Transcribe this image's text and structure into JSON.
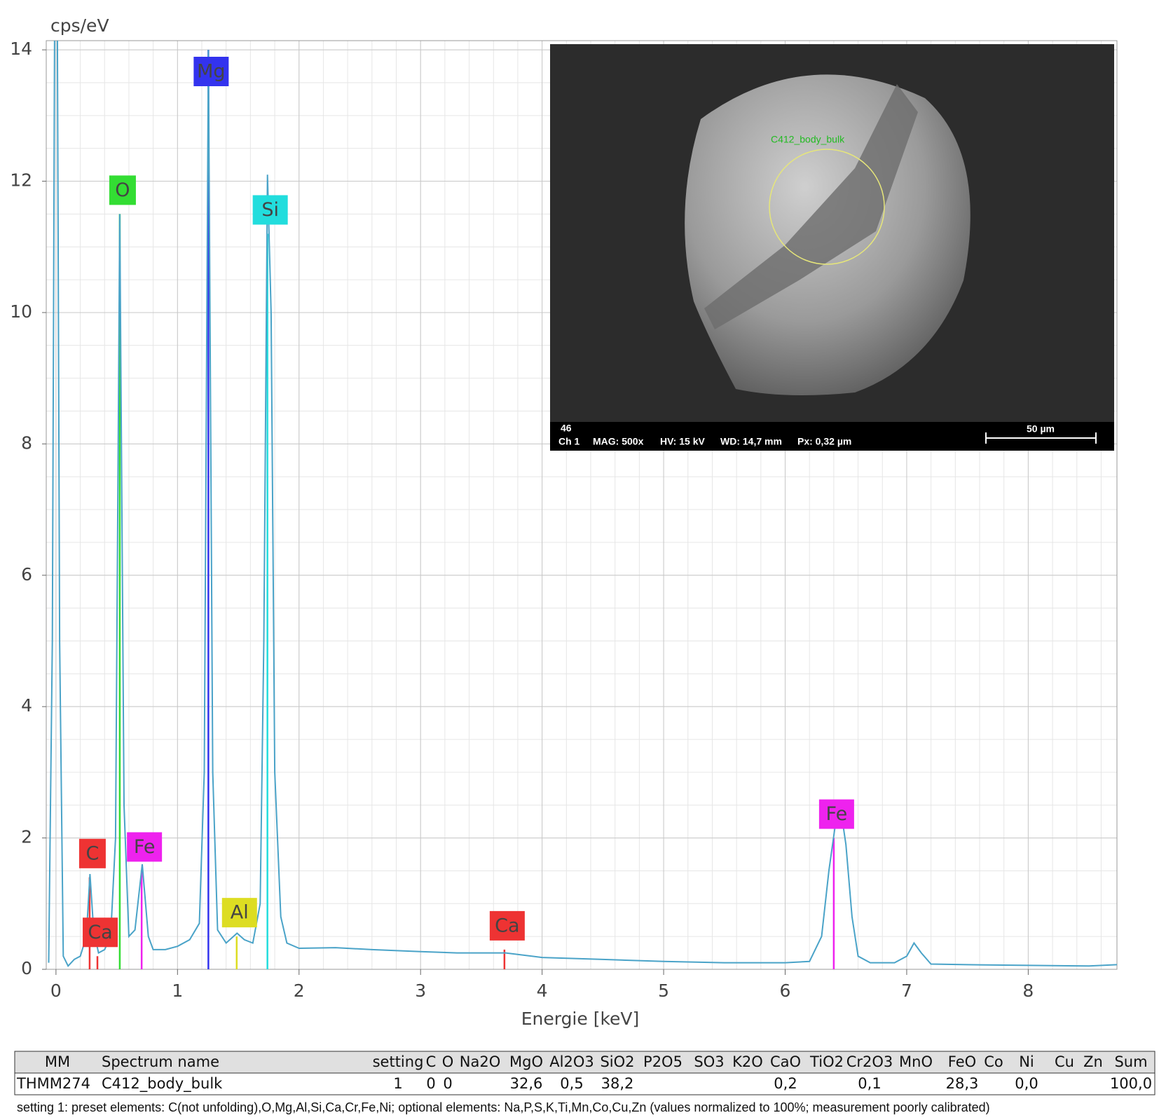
{
  "chart_data": {
    "type": "line",
    "y_axis_label": "cps/eV",
    "x_axis_label": "Energie [keV]",
    "color": "#4aa3c8",
    "xlim": [
      -0.08,
      8.73
    ],
    "ylim": [
      0,
      14.14
    ],
    "xticks": [
      0,
      1,
      2,
      3,
      4,
      5,
      6,
      7,
      8
    ],
    "yticks": [
      0,
      2,
      4,
      6,
      8,
      10,
      12,
      14
    ],
    "grid": true,
    "minor_grid": {
      "x": 0.2,
      "y": 0.5
    },
    "x": [
      -0.06,
      -0.03,
      0,
      0.03,
      0.06,
      0.1,
      0.15,
      0.2,
      0.25,
      0.28,
      0.31,
      0.35,
      0.4,
      0.45,
      0.49,
      0.525,
      0.56,
      0.6,
      0.65,
      0.71,
      0.76,
      0.8,
      0.9,
      1.0,
      1.1,
      1.18,
      1.22,
      1.254,
      1.29,
      1.33,
      1.4,
      1.49,
      1.55,
      1.62,
      1.68,
      1.71,
      1.74,
      1.77,
      1.8,
      1.85,
      1.9,
      2.0,
      2.3,
      2.6,
      3.0,
      3.3,
      3.7,
      4.0,
      4.5,
      5.0,
      5.5,
      6.0,
      6.2,
      6.3,
      6.36,
      6.42,
      6.46,
      6.5,
      6.55,
      6.6,
      6.7,
      6.9,
      7.0,
      7.06,
      7.12,
      7.2,
      7.5,
      8.0,
      8.5,
      8.73
    ],
    "values": [
      0.1,
      5,
      20,
      5,
      0.2,
      0.05,
      0.15,
      0.2,
      0.5,
      1.45,
      0.6,
      0.25,
      0.3,
      0.5,
      2,
      11.5,
      2.5,
      0.5,
      0.6,
      1.6,
      0.5,
      0.3,
      0.3,
      0.35,
      0.45,
      0.7,
      3,
      14.0,
      3,
      0.6,
      0.4,
      0.55,
      0.45,
      0.4,
      1,
      5,
      12.1,
      10,
      3,
      0.8,
      0.4,
      0.32,
      0.33,
      0.3,
      0.27,
      0.25,
      0.25,
      0.18,
      0.15,
      0.12,
      0.1,
      0.1,
      0.12,
      0.5,
      1.5,
      2.3,
      2.4,
      1.9,
      0.8,
      0.2,
      0.1,
      0.1,
      0.2,
      0.4,
      0.25,
      0.08,
      0.07,
      0.06,
      0.05,
      0.07
    ],
    "markers": [
      {
        "label": "C",
        "x": 0.277,
        "height": 1.4,
        "color": "#ee3333"
      },
      {
        "label": "Ca",
        "x": 0.341,
        "height": 0.2,
        "color": "#ee3333"
      },
      {
        "label": "O",
        "x": 0.525,
        "height": 11.5,
        "color": "#33dd33"
      },
      {
        "label": "Fe",
        "x": 0.705,
        "height": 1.5,
        "color": "#ee22ee"
      },
      {
        "label": "Mg",
        "x": 1.254,
        "height": 14,
        "color": "#3333ee"
      },
      {
        "label": "Al",
        "x": 1.487,
        "height": 0.5,
        "color": "#dddd22"
      },
      {
        "label": "Si",
        "x": 1.74,
        "height": 11.2,
        "color": "#22dddd"
      },
      {
        "label": "Ca",
        "x": 3.69,
        "height": 0.3,
        "color": "#ee3333"
      },
      {
        "label": "Fe",
        "x": 6.4,
        "height": 2.0,
        "color": "#ee22ee"
      }
    ]
  },
  "inset": {
    "region_label": "C412_body_bulk",
    "number": "46",
    "channel": "Ch 1",
    "mag": "MAG: 500x",
    "hv": "HV: 15 kV",
    "wd": "WD: 14,7 mm",
    "px": "Px: 0,32 µm",
    "scale": "50 µm"
  },
  "table": {
    "header": [
      "MM",
      "Spectrum name",
      "setting",
      "C",
      "O",
      "Na2O",
      "MgO",
      "Al2O3",
      "SiO2",
      "P2O5",
      "SO3",
      "K2O",
      "CaO",
      "TiO2",
      "Cr2O3",
      "MnO",
      "FeO",
      "Co",
      "Ni",
      "Cu",
      "Zn",
      "Sum"
    ],
    "rows": [
      [
        "THMM274",
        "C412_body_bulk",
        "1",
        "0",
        "0",
        null,
        "32,6",
        "0,5",
        "38,2",
        null,
        null,
        null,
        "0,2",
        null,
        "0,1",
        null,
        "28,3",
        null,
        "0,0",
        null,
        null,
        "100,0"
      ]
    ]
  },
  "footnote": "setting 1: preset elements: C(not unfolding),O,Mg,Al,Si,Ca,Cr,Fe,Ni; optional elements: Na,P,S,K,Ti,Mn,Co,Cu,Zn (values normalized to 100%; measurement poorly calibrated)"
}
